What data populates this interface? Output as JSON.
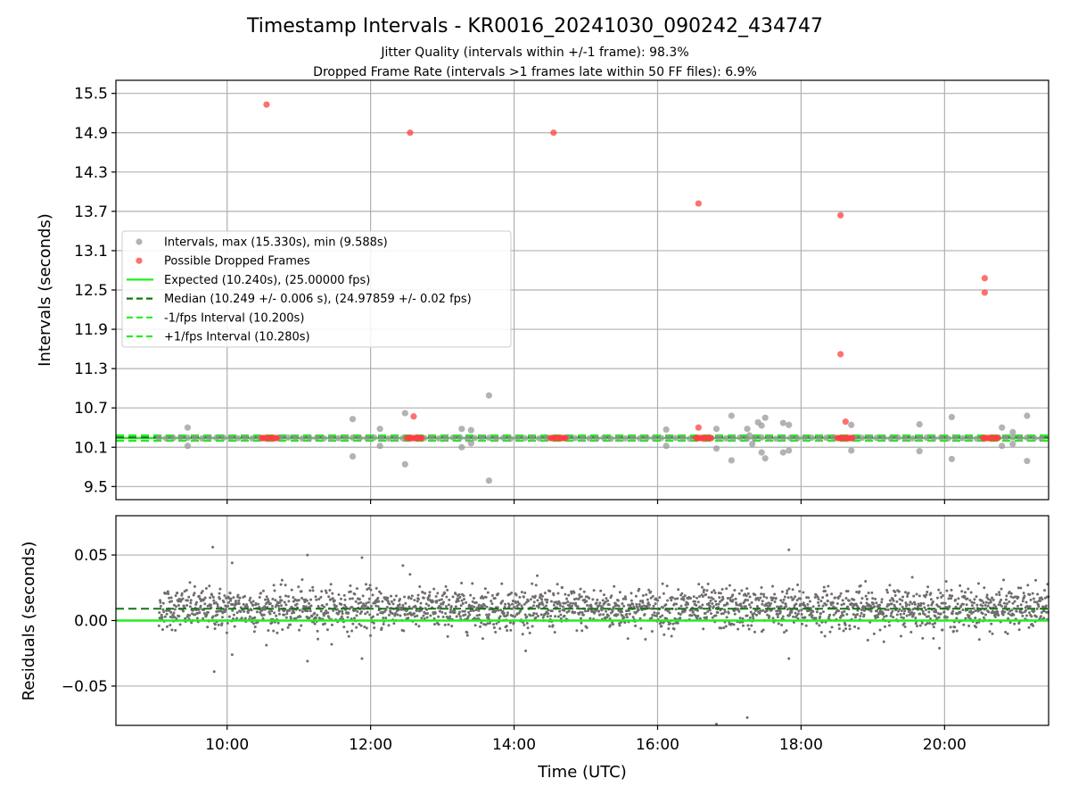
{
  "chart_data": [
    {
      "type": "scatter",
      "title": "Timestamp Intervals - KR0016_20241030_090242_434747",
      "subtitles": [
        "Jitter Quality (intervals within +/-1 frame): 98.3%",
        "Dropped Frame Rate (intervals >1 frames late within 50 FF files): 6.9%"
      ],
      "ylabel": "Intervals (seconds)",
      "xlim_hours": [
        8.45,
        21.45
      ],
      "ylim": [
        9.3,
        15.7
      ],
      "yticks": [
        9.5,
        10.1,
        10.7,
        11.3,
        11.9,
        12.5,
        13.1,
        13.7,
        14.3,
        14.9,
        15.5
      ],
      "ytick_labels": [
        "9.5",
        "10.1",
        "10.7",
        "11.3",
        "11.9",
        "12.5",
        "13.1",
        "13.7",
        "14.3",
        "14.9",
        "15.5"
      ],
      "xticks_hours": [
        10,
        12,
        14,
        16,
        18,
        20
      ],
      "grid": true,
      "legend_position": "center-left",
      "legend": [
        {
          "label": "Intervals, max (15.330s), min (9.588s)",
          "style": "marker",
          "color": "#9a9a9a"
        },
        {
          "label": "Possible Dropped Frames",
          "style": "marker",
          "color": "#ff4040"
        },
        {
          "label": "Expected (10.240s), (25.00000 fps)",
          "style": "solid",
          "color": "#22ee22"
        },
        {
          "label": "Median (10.249 +/- 0.006 s), (24.97859 +/- 0.02 fps)",
          "style": "dashed",
          "color": "#117711"
        },
        {
          "label": "-1/fps Interval (10.200s)",
          "style": "dashed",
          "color": "#22ee22"
        },
        {
          "label": "+1/fps Interval (10.280s)",
          "style": "dashed",
          "color": "#22ee22"
        }
      ],
      "reference_lines": {
        "expected": 10.24,
        "median": 10.249,
        "minus_1fps": 10.2,
        "plus_1fps": 10.28
      },
      "data_range_hours": [
        9.05,
        21.45
      ],
      "baseline_interval": 10.24,
      "interval_outliers": [
        [
          9.45,
          10.4
        ],
        [
          9.45,
          10.12
        ],
        [
          11.75,
          10.53
        ],
        [
          11.75,
          9.96
        ],
        [
          12.13,
          10.38
        ],
        [
          12.13,
          10.12
        ],
        [
          12.48,
          10.62
        ],
        [
          12.48,
          9.84
        ],
        [
          13.27,
          10.38
        ],
        [
          13.27,
          10.1
        ],
        [
          13.4,
          10.36
        ],
        [
          13.4,
          10.16
        ],
        [
          13.65,
          10.89
        ],
        [
          13.65,
          9.59
        ],
        [
          16.12,
          10.37
        ],
        [
          16.12,
          10.12
        ],
        [
          16.82,
          10.38
        ],
        [
          16.82,
          10.08
        ],
        [
          17.03,
          10.58
        ],
        [
          17.03,
          9.9
        ],
        [
          17.25,
          10.38
        ],
        [
          17.28,
          10.28
        ],
        [
          17.32,
          10.15
        ],
        [
          17.4,
          10.48
        ],
        [
          17.45,
          10.43
        ],
        [
          17.45,
          10.02
        ],
        [
          17.5,
          10.55
        ],
        [
          17.5,
          9.93
        ],
        [
          17.75,
          10.47
        ],
        [
          17.75,
          10.02
        ],
        [
          17.83,
          10.44
        ],
        [
          17.83,
          10.05
        ],
        [
          18.7,
          10.44
        ],
        [
          18.7,
          10.05
        ],
        [
          19.65,
          10.45
        ],
        [
          19.65,
          10.04
        ],
        [
          20.1,
          10.56
        ],
        [
          20.1,
          9.92
        ],
        [
          20.8,
          10.4
        ],
        [
          20.8,
          10.12
        ],
        [
          20.95,
          10.33
        ],
        [
          20.95,
          10.15
        ],
        [
          21.15,
          10.58
        ],
        [
          21.15,
          9.89
        ]
      ],
      "dropped_frames": [
        [
          10.55,
          15.33
        ],
        [
          12.55,
          14.9
        ],
        [
          14.55,
          14.9
        ],
        [
          16.57,
          13.82
        ],
        [
          18.55,
          13.64
        ],
        [
          20.56,
          12.68
        ],
        [
          20.56,
          12.46
        ],
        [
          18.55,
          11.52
        ],
        [
          12.6,
          10.57
        ],
        [
          16.57,
          10.4
        ],
        [
          18.62,
          10.49
        ]
      ],
      "dropped_frame_clusters_hours": [
        10.6,
        12.62,
        14.62,
        16.65,
        18.62,
        20.65
      ]
    },
    {
      "type": "scatter",
      "ylabel": "Residuals (seconds)",
      "xlabel": "Time (UTC)",
      "xlim_hours": [
        8.45,
        21.45
      ],
      "ylim": [
        -0.08,
        0.08
      ],
      "yticks": [
        -0.05,
        0.0,
        0.05
      ],
      "ytick_labels": [
        "−0.05",
        "0.00",
        "0.05"
      ],
      "xticks_hours": [
        10,
        12,
        14,
        16,
        18,
        20
      ],
      "xtick_labels": [
        "10:00",
        "12:00",
        "14:00",
        "16:00",
        "18:00",
        "20:00"
      ],
      "grid": true,
      "reference_lines": {
        "zero": 0.0,
        "median_offset": 0.009
      },
      "residual_scatter_sigma": 0.008,
      "residual_outliers": [
        [
          9.8,
          0.056
        ],
        [
          9.82,
          -0.039
        ],
        [
          10.07,
          0.044
        ],
        [
          10.07,
          -0.026
        ],
        [
          11.12,
          0.05
        ],
        [
          11.12,
          -0.031
        ],
        [
          11.88,
          0.048
        ],
        [
          11.88,
          -0.029
        ],
        [
          12.45,
          0.042
        ],
        [
          17.83,
          0.054
        ],
        [
          17.83,
          -0.029
        ],
        [
          16.82,
          -0.079
        ],
        [
          17.25,
          -0.074
        ],
        [
          19.55,
          0.033
        ]
      ]
    }
  ],
  "colors": {
    "interval_marker": "#9a9a9a",
    "dropped_marker": "#ff4040",
    "expected_line": "#22ee22",
    "median_line": "#117711",
    "residual_point": "#6e6e6e"
  }
}
